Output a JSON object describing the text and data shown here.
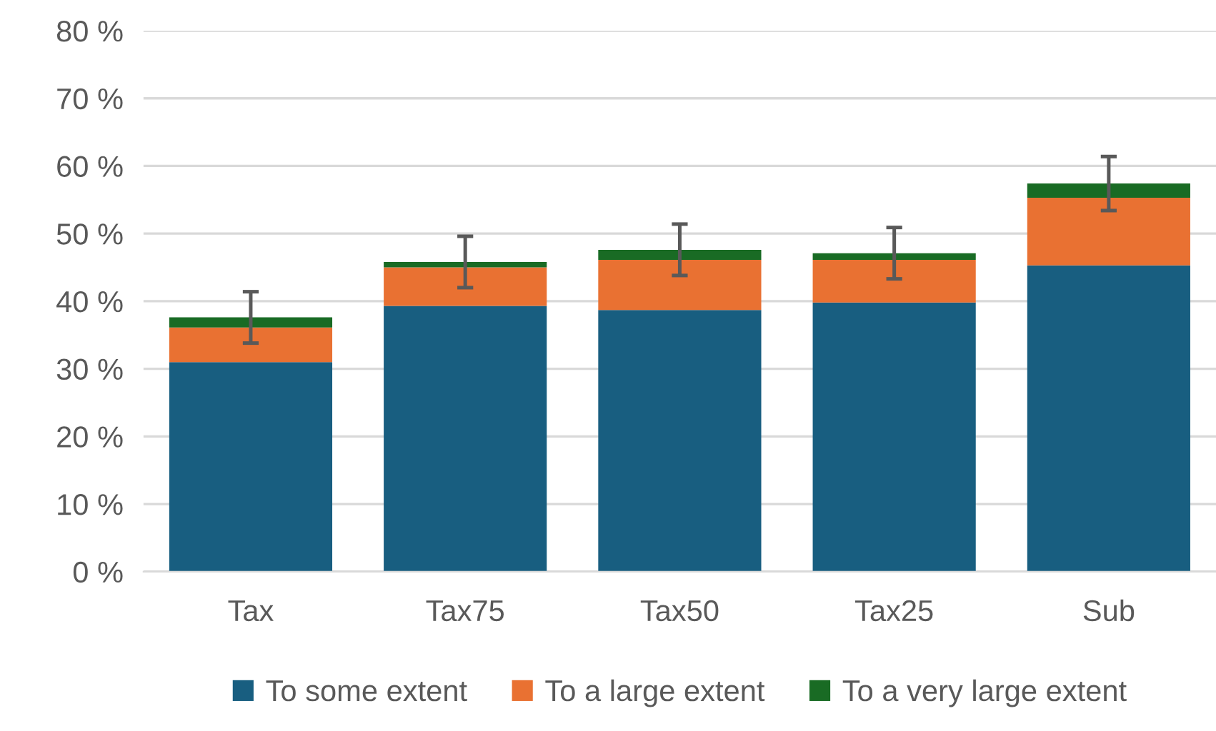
{
  "chart_data": {
    "type": "bar",
    "stacked": true,
    "categories": [
      "Tax",
      "Tax75",
      "Tax50",
      "Tax25",
      "Sub"
    ],
    "series": [
      {
        "name": "To some extent",
        "color": "#185e80",
        "values": [
          31.0,
          39.3,
          38.7,
          39.8,
          45.3
        ]
      },
      {
        "name": "To a large extent",
        "color": "#e97132",
        "values": [
          5.1,
          5.7,
          7.4,
          6.3,
          10.0
        ]
      },
      {
        "name": "To a very large extent",
        "color": "#196b24",
        "values": [
          1.5,
          0.8,
          1.5,
          1.0,
          2.1
        ],
        "errors": [
          3.8,
          3.8,
          3.8,
          3.8,
          4.0
        ]
      }
    ],
    "ylim": [
      0,
      80
    ],
    "yticks": [
      {
        "value": 0,
        "label": "0 %"
      },
      {
        "value": 10,
        "label": "10 %"
      },
      {
        "value": 20,
        "label": "20 %"
      },
      {
        "value": 30,
        "label": "30 %"
      },
      {
        "value": 40,
        "label": "40 %"
      },
      {
        "value": 50,
        "label": "50 %"
      },
      {
        "value": 60,
        "label": "60 %"
      },
      {
        "value": 70,
        "label": "70 %"
      },
      {
        "value": 80,
        "label": "80 %"
      }
    ],
    "grid": "y",
    "legend": "bottom"
  }
}
